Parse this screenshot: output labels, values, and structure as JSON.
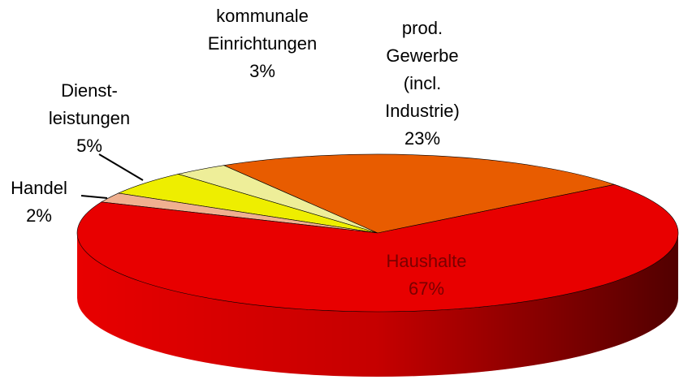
{
  "chart_data": {
    "type": "pie",
    "categories": [
      "prod.\nGewerbe\n(incl.\nIndustrie)",
      "kommunale\nEinrichtungen",
      "Dienst-\nleistungen",
      "Handel",
      "Haushalte"
    ],
    "values": [
      23,
      3,
      5,
      2,
      67
    ],
    "value_labels": [
      "23%",
      "3%",
      "5%",
      "2%",
      "67%"
    ],
    "colors": [
      "#e85c00",
      "#eeee99",
      "#eeee00",
      "#f0b090",
      "#e80000"
    ]
  }
}
